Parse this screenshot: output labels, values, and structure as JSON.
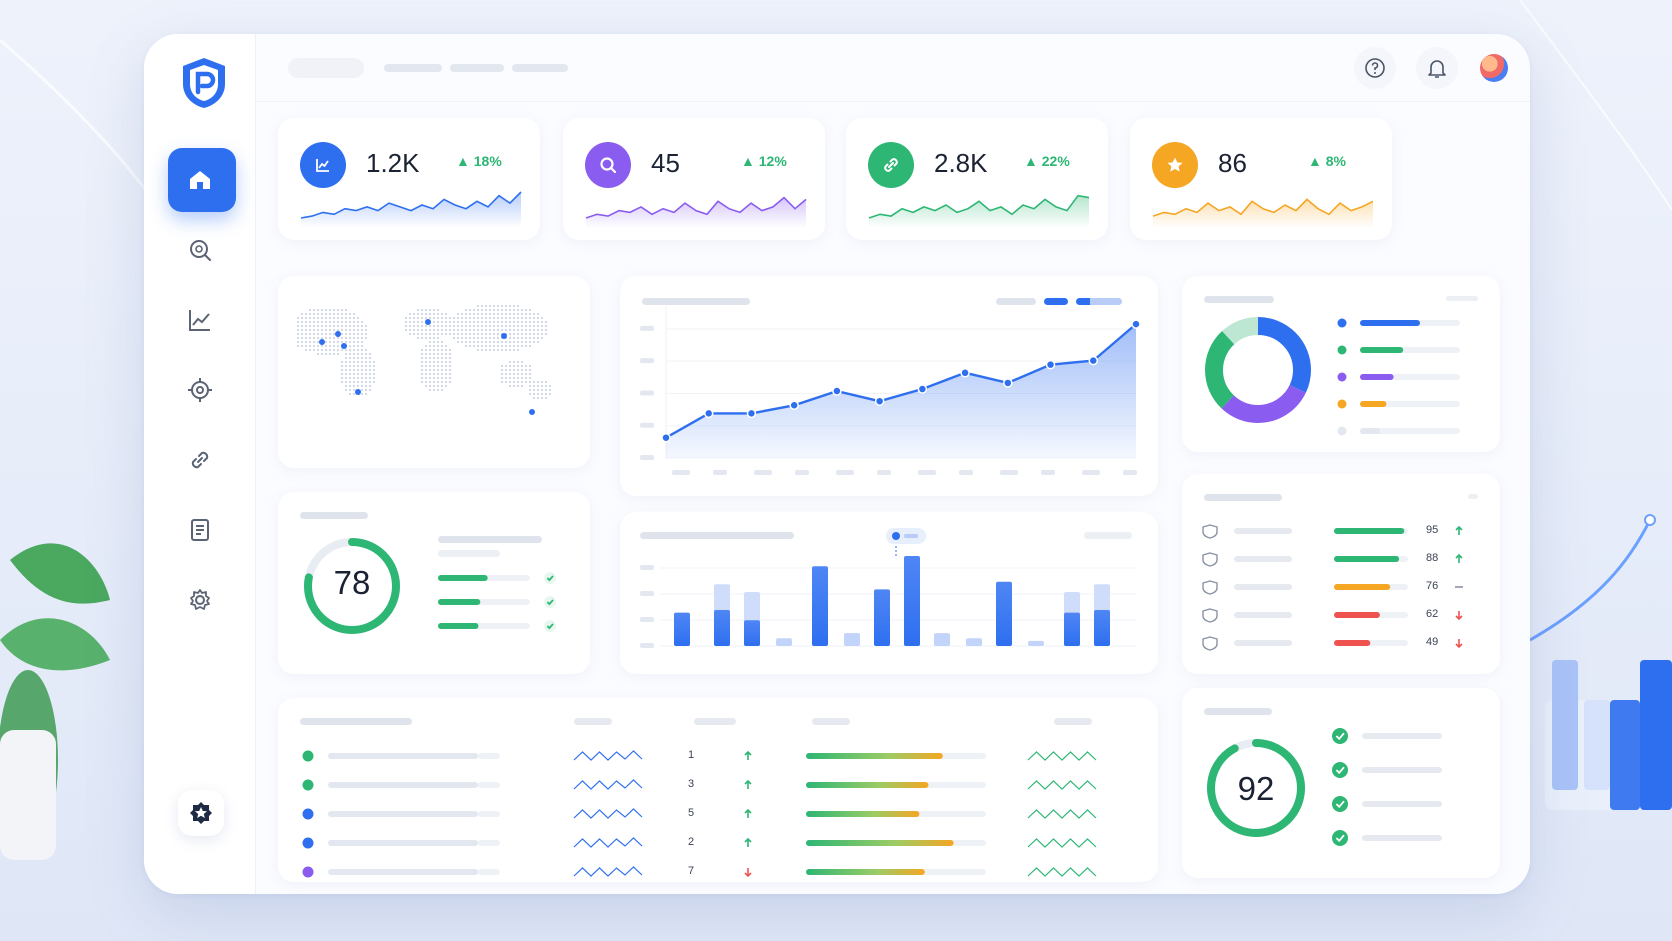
{
  "kpis": [
    {
      "value": "1.2K",
      "delta": "18%",
      "color": "#2e6ff0",
      "icon": "chart-line-icon",
      "spark": [
        14,
        13,
        11,
        12,
        9,
        10,
        8,
        10,
        6,
        8,
        10,
        7,
        9,
        4,
        7,
        9,
        5,
        8,
        2,
        6,
        0
      ]
    },
    {
      "value": "45",
      "delta": "12%",
      "color": "#8a5cf0",
      "icon": "search-icon",
      "spark": [
        14,
        12,
        13,
        10,
        11,
        8,
        12,
        9,
        11,
        6,
        10,
        12,
        5,
        9,
        11,
        6,
        10,
        8,
        3,
        9,
        4
      ]
    },
    {
      "value": "2.8K",
      "delta": "22%",
      "color": "#2db674",
      "icon": "link-icon",
      "spark": [
        14,
        12,
        13,
        9,
        11,
        8,
        10,
        7,
        11,
        9,
        5,
        10,
        8,
        12,
        7,
        9,
        4,
        8,
        10,
        2,
        3
      ]
    },
    {
      "value": "86",
      "delta": "8%",
      "color": "#f5a623",
      "icon": "star-icon",
      "spark": [
        13,
        11,
        12,
        9,
        11,
        6,
        10,
        8,
        12,
        5,
        9,
        11,
        7,
        10,
        4,
        9,
        12,
        6,
        10,
        8,
        5
      ]
    }
  ],
  "line_chart": {
    "values": [
      10,
      22,
      22,
      26,
      33,
      28,
      34,
      42,
      37,
      46,
      48,
      66
    ]
  },
  "bar_chart": {
    "back": [
      0,
      48,
      42,
      0,
      0,
      0,
      0,
      0,
      0,
      0,
      42,
      48
    ],
    "front": [
      26,
      28,
      20,
      6,
      62,
      10,
      44,
      70,
      10,
      6,
      50,
      4,
      26,
      28
    ]
  },
  "donut": {
    "segments": [
      {
        "color": "#2e6ff0",
        "value": 32
      },
      {
        "color": "#8a5cf0",
        "value": 30
      },
      {
        "color": "#2db674",
        "value": 26
      },
      {
        "color": "#bde6d3",
        "value": 12
      }
    ]
  },
  "score_78": {
    "value": "78",
    "percent": 78
  },
  "score_92": {
    "value": "92",
    "percent": 92
  },
  "ranking": [
    {
      "value": "95",
      "color": "#2db674",
      "fill": 0.95,
      "trend": "up"
    },
    {
      "value": "88",
      "color": "#2db674",
      "fill": 0.88,
      "trend": "up"
    },
    {
      "value": "76",
      "color": "#f5a623",
      "fill": 0.76,
      "trend": "flat"
    },
    {
      "value": "62",
      "color": "#ef5350",
      "fill": 0.62,
      "trend": "down"
    },
    {
      "value": "49",
      "color": "#ef5350",
      "fill": 0.49,
      "trend": "down"
    }
  ],
  "table_rows": [
    {
      "dot": "#2db674",
      "rank": "1",
      "trend": "up",
      "progress": 0.76
    },
    {
      "dot": "#2db674",
      "rank": "3",
      "trend": "up",
      "progress": 0.68
    },
    {
      "dot": "#2e6ff0",
      "rank": "5",
      "trend": "up",
      "progress": 0.63
    },
    {
      "dot": "#2e6ff0",
      "rank": "2",
      "trend": "up",
      "progress": 0.82
    },
    {
      "dot": "#8a5cf0",
      "rank": "7",
      "trend": "down",
      "progress": 0.66
    }
  ]
}
